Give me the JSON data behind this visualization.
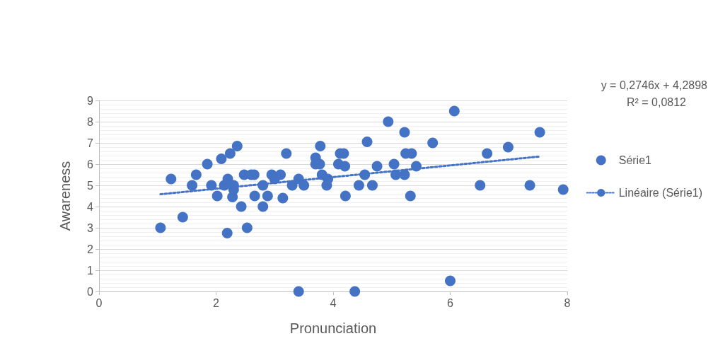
{
  "chart_data": {
    "type": "scatter",
    "xlabel": "Pronunciation",
    "ylabel": "Awareness",
    "xlim": [
      0,
      8
    ],
    "xticks": [
      0,
      2,
      4,
      6,
      8
    ],
    "ylim": [
      0,
      9
    ],
    "yticks": [
      0,
      1,
      2,
      3,
      4,
      5,
      6,
      7,
      8,
      9
    ],
    "grid": "y",
    "legend": "right",
    "marker": "circle",
    "annotations": [
      "y = 0,2746x + 4,2898",
      "R² = 0,0812"
    ],
    "series": [
      {
        "name": "Série1",
        "color": "#4472c4",
        "x": [
          1.05,
          1.23,
          1.43,
          1.59,
          1.66,
          1.85,
          1.92,
          2.02,
          2.09,
          2.14,
          2.2,
          2.19,
          2.24,
          2.3,
          2.3,
          2.28,
          2.36,
          2.43,
          2.48,
          2.53,
          2.6,
          2.66,
          2.65,
          2.8,
          2.8,
          2.88,
          2.95,
          3.0,
          3.1,
          3.14,
          3.2,
          3.3,
          3.41,
          3.41,
          3.5,
          3.7,
          3.7,
          3.77,
          3.78,
          3.81,
          3.89,
          3.91,
          4.09,
          4.12,
          4.18,
          4.2,
          4.21,
          4.37,
          4.44,
          4.54,
          4.58,
          4.67,
          4.75,
          4.94,
          5.04,
          5.07,
          5.22,
          5.22,
          5.24,
          5.32,
          5.34,
          5.42,
          5.7,
          6.0,
          6.07,
          6.51,
          6.63,
          6.99,
          7.36,
          7.53,
          7.93
        ],
        "values": [
          3,
          5.3,
          3.5,
          5,
          5.5,
          6,
          5,
          4.5,
          6.25,
          5,
          5.3,
          2.75,
          6.5,
          4.8,
          5,
          4.45,
          6.85,
          4,
          5.5,
          3,
          5.5,
          4.5,
          5.5,
          4,
          5,
          4.5,
          5.5,
          5.3,
          5.5,
          4.4,
          6.5,
          5,
          5.3,
          0,
          5,
          6,
          6.3,
          6,
          6.85,
          5.5,
          5,
          5.3,
          6,
          6.5,
          6.5,
          5.9,
          4.5,
          0,
          5,
          5.5,
          7.05,
          5,
          5.9,
          8,
          6,
          5.5,
          5.5,
          7.5,
          6.5,
          4.5,
          6.5,
          5.9,
          7,
          0.5,
          8.5,
          5,
          6.5,
          6.8,
          5,
          7.5,
          4.8
        ]
      },
      {
        "name": "Linéaire (Série1)",
        "type": "line",
        "color": "#4472c4",
        "line_style": "dotted",
        "marker": "none",
        "x": [
          1.05,
          7.53
        ],
        "values": [
          4.58,
          6.36
        ]
      }
    ]
  }
}
